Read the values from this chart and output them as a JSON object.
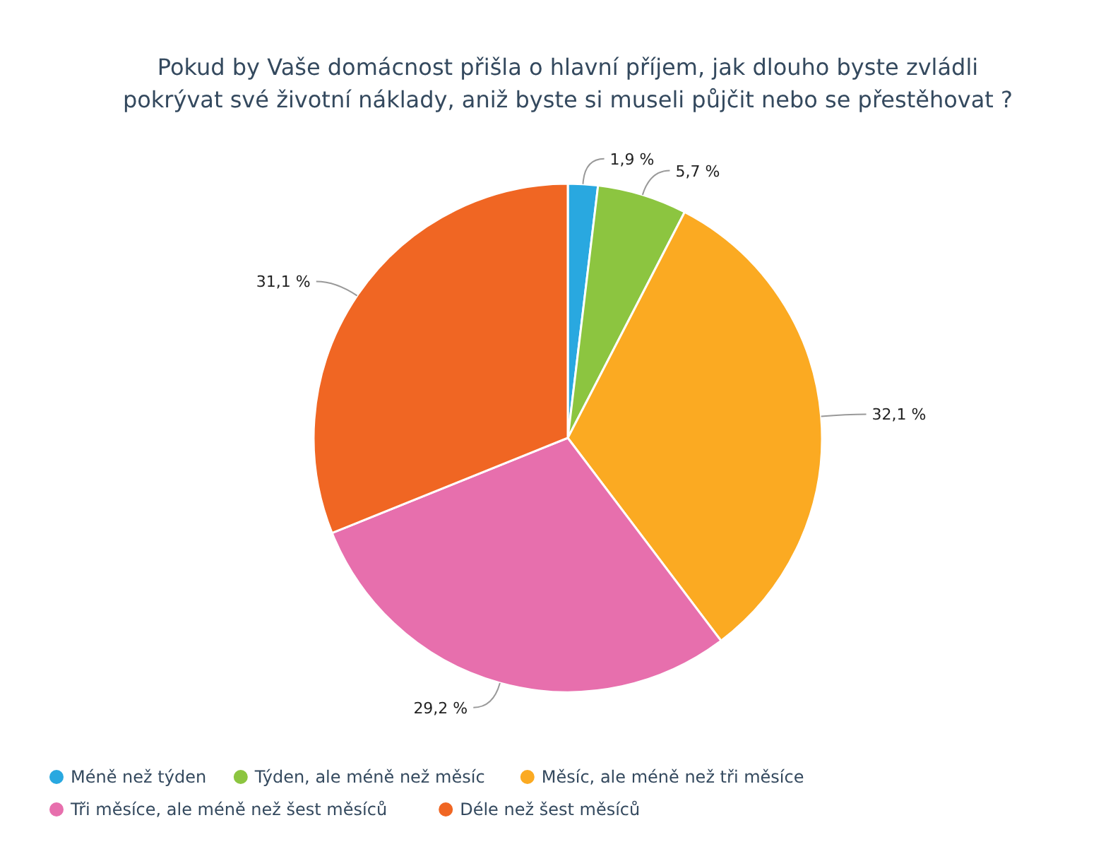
{
  "chart_data": {
    "type": "pie",
    "title": "Pokud by Vaše domácnost přišla o hlavní příjem, jak dlouho byste zvládli pokrývat své životní náklady, aniž byste si museli půjčit nebo se přestěhovat ?",
    "categories": [
      "Méně než týden",
      "Týden, ale méně než měsíc",
      "Měsíc, ale méně než tři měsíce",
      "Tři měsíce, ale méně než šest měsíců",
      "Déle než šest měsíců"
    ],
    "values": [
      1.9,
      5.7,
      32.1,
      29.2,
      31.1
    ],
    "colors": [
      "#29a8e0",
      "#8cc540",
      "#fbaa22",
      "#e76fad",
      "#f06623"
    ],
    "value_labels": [
      "1,9 %",
      "5,7 %",
      "32,1 %",
      "29,2 %",
      "31,1 %"
    ],
    "legend": "bottom"
  }
}
